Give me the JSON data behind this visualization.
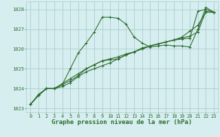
{
  "bg_color": "#d6eef0",
  "grid_color": "#aacccc",
  "line_color": "#2d6b2d",
  "title": "Graphe pression niveau de la mer (hPa)",
  "xlim": [
    -0.5,
    23.5
  ],
  "ylim": [
    1022.8,
    1028.4
  ],
  "yticks": [
    1023,
    1024,
    1025,
    1026,
    1027,
    1028
  ],
  "xticks": [
    0,
    1,
    2,
    3,
    4,
    5,
    6,
    7,
    8,
    9,
    10,
    11,
    12,
    13,
    14,
    15,
    16,
    17,
    18,
    19,
    20,
    21,
    22,
    23
  ],
  "series": [
    [
      1023.2,
      1023.7,
      1024.0,
      1024.0,
      1024.1,
      1024.3,
      1024.6,
      1024.85,
      1025.0,
      1025.15,
      1025.3,
      1025.5,
      1025.7,
      1025.85,
      1026.0,
      1026.15,
      1026.25,
      1026.35,
      1026.45,
      1026.6,
      1026.9,
      1027.2,
      1027.85,
      1027.85
    ],
    [
      1023.2,
      1023.65,
      1024.0,
      1024.0,
      1024.2,
      1025.0,
      1025.8,
      1026.3,
      1026.85,
      1027.6,
      1027.6,
      1027.55,
      1027.25,
      1026.6,
      1026.3,
      1026.1,
      1026.15,
      1026.2,
      1026.15,
      1026.15,
      1026.1,
      1027.0,
      1028.1,
      1027.85
    ],
    [
      1023.2,
      1023.65,
      1024.0,
      1024.0,
      1024.2,
      1024.4,
      1024.65,
      1025.0,
      1025.2,
      1025.4,
      1025.45,
      1025.5,
      1025.7,
      1025.85,
      1026.0,
      1026.15,
      1026.25,
      1026.35,
      1026.45,
      1026.5,
      1026.55,
      1027.9,
      1028.0,
      1027.85
    ],
    [
      1023.2,
      1023.65,
      1024.0,
      1024.0,
      1024.25,
      1024.5,
      1024.75,
      1025.0,
      1025.2,
      1025.4,
      1025.5,
      1025.6,
      1025.75,
      1025.85,
      1026.05,
      1026.15,
      1026.25,
      1026.35,
      1026.45,
      1026.55,
      1026.65,
      1026.85,
      1027.9,
      1027.85
    ]
  ],
  "title_fontsize": 6.5,
  "tick_fontsize": 5.0
}
